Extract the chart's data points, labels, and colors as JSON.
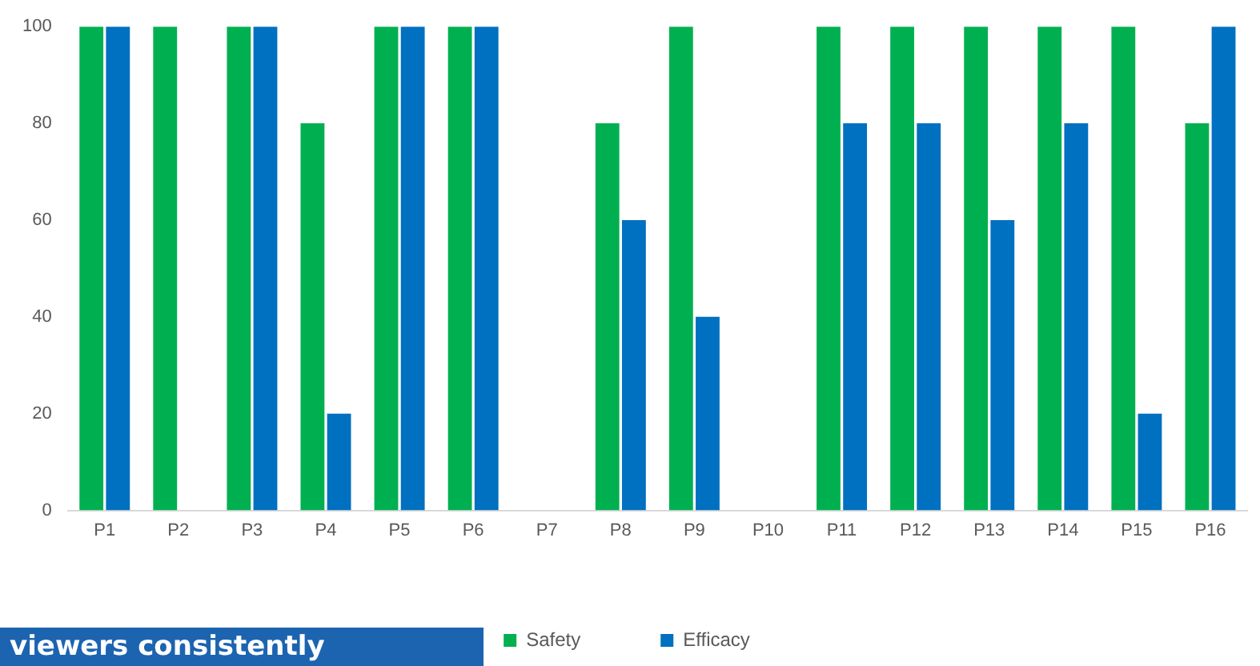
{
  "chart_data": {
    "type": "bar",
    "categories": [
      "P1",
      "P2",
      "P3",
      "P4",
      "P5",
      "P6",
      "P7",
      "P8",
      "P9",
      "P10",
      "P11",
      "P12",
      "P13",
      "P14",
      "P15",
      "P16"
    ],
    "series": [
      {
        "name": "Safety",
        "color": "#00b050",
        "values": [
          100,
          100,
          100,
          80,
          100,
          100,
          0,
          80,
          100,
          0,
          100,
          100,
          100,
          100,
          100,
          80
        ]
      },
      {
        "name": "Efficacy",
        "color": "#0070c0",
        "values": [
          100,
          0,
          100,
          20,
          100,
          100,
          0,
          60,
          40,
          0,
          80,
          80,
          60,
          80,
          20,
          100
        ]
      }
    ],
    "ylim": [
      0,
      100
    ],
    "yticks": [
      0,
      20,
      40,
      60,
      80,
      100
    ],
    "grid": false,
    "legend": "bottom",
    "annotations": [
      "viewers consistently"
    ]
  }
}
